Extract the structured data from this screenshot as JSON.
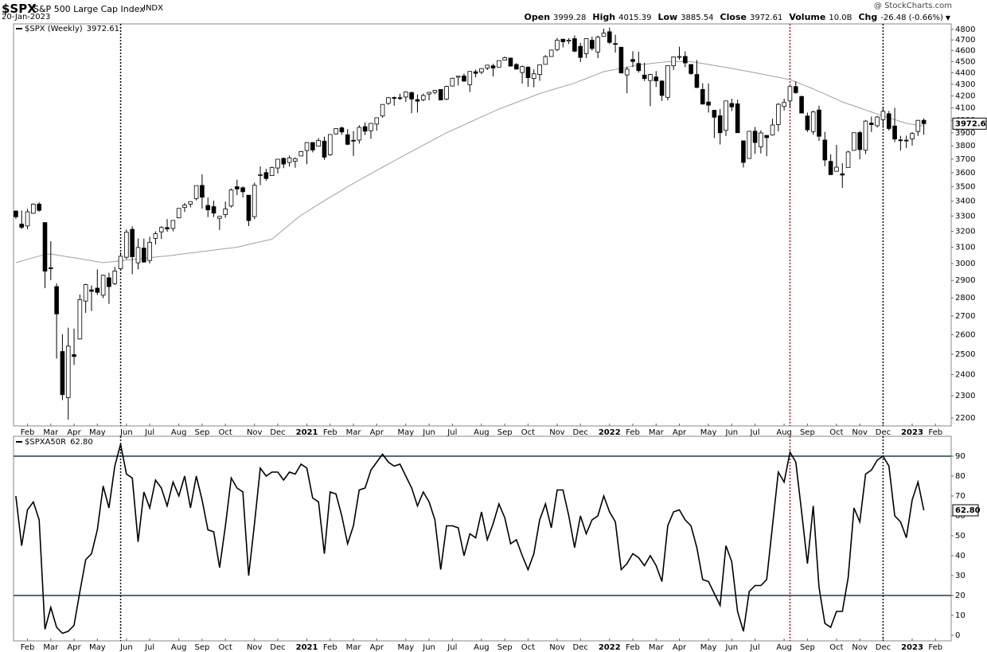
{
  "header": {
    "symbol": "$SPX",
    "name": "S&P 500 Large Cap Index",
    "exchange": "INDX",
    "date": "20-Jan-2023",
    "source": "@ StockCharts.com",
    "quote": [
      {
        "label": "Open",
        "value": "3999.28"
      },
      {
        "label": "High",
        "value": "4015.39"
      },
      {
        "label": "Low",
        "value": "3885.54"
      },
      {
        "label": "Close",
        "value": "3972.61"
      },
      {
        "label": "Volume",
        "value": "10.0B"
      },
      {
        "label": "Chg",
        "value": "-26.48 (-0.66%)"
      }
    ]
  },
  "chart_data": [
    {
      "type": "candlestick",
      "legend": "$SPX (Weekly)",
      "log_scale": true,
      "xlim": [
        -0.4,
        160.7
      ],
      "xticks": [
        {
          "value": 2,
          "label": "Feb"
        },
        {
          "value": 6,
          "label": "Mar"
        },
        {
          "value": 10,
          "label": "Apr"
        },
        {
          "value": 14,
          "label": "May"
        },
        {
          "value": 19,
          "label": "Jun"
        },
        {
          "value": 23,
          "label": "Jul"
        },
        {
          "value": 28,
          "label": "Aug"
        },
        {
          "value": 32,
          "label": "Sep"
        },
        {
          "value": 36,
          "label": "Oct"
        },
        {
          "value": 41,
          "label": "Nov"
        },
        {
          "value": 45,
          "label": "Dec"
        },
        {
          "value": 50,
          "label": "2021"
        },
        {
          "value": 54,
          "label": "Feb"
        },
        {
          "value": 58,
          "label": "Mar"
        },
        {
          "value": 62,
          "label": "Apr"
        },
        {
          "value": 67,
          "label": "May"
        },
        {
          "value": 71,
          "label": "Jun"
        },
        {
          "value": 75,
          "label": "Jul"
        },
        {
          "value": 80,
          "label": "Aug"
        },
        {
          "value": 84,
          "label": "Sep"
        },
        {
          "value": 88,
          "label": "Oct"
        },
        {
          "value": 93,
          "label": "Nov"
        },
        {
          "value": 97,
          "label": "Dec"
        },
        {
          "value": 102,
          "label": "2022"
        },
        {
          "value": 106,
          "label": "Feb"
        },
        {
          "value": 110,
          "label": "Mar"
        },
        {
          "value": 114,
          "label": "Apr"
        },
        {
          "value": 119,
          "label": "May"
        },
        {
          "value": 123,
          "label": "Jun"
        },
        {
          "value": 127,
          "label": "Jul"
        },
        {
          "value": 132,
          "label": "Aug"
        },
        {
          "value": 136,
          "label": "Sep"
        },
        {
          "value": 141,
          "label": "Oct"
        },
        {
          "value": 145,
          "label": "Nov"
        },
        {
          "value": 149,
          "label": "Dec"
        },
        {
          "value": 154,
          "label": "2023"
        },
        {
          "value": 158,
          "label": "Feb"
        }
      ],
      "ylim": [
        2165,
        4854
      ],
      "yticks": [
        2200,
        2300,
        2400,
        2500,
        2600,
        2700,
        2800,
        2900,
        3000,
        3100,
        3200,
        3300,
        3400,
        3500,
        3600,
        3700,
        3800,
        3900,
        4000,
        4100,
        4200,
        4300,
        4400,
        4500,
        4600,
        4700,
        4800
      ],
      "vlines": [
        {
          "value": 18,
          "color": "#000000"
        },
        {
          "value": 133,
          "color": "#d00000"
        },
        {
          "value": 149,
          "color": "#000000"
        }
      ],
      "up_color": "#ffffff",
      "down_color": "#000000",
      "open": [
        3333,
        3247,
        3235,
        3318,
        3380,
        3257,
        2974,
        2864,
        2514,
        2291,
        2498,
        2578,
        2782,
        2845,
        2855,
        2815,
        2915,
        2881,
        2969,
        3038,
        3213,
        3004,
        3094,
        3018,
        3155,
        3197,
        3224,
        3219,
        3288,
        3357,
        3380,
        3418,
        3509,
        3371,
        3363,
        3285,
        3310,
        3367,
        3500,
        3493,
        3441,
        3296,
        3584,
        3601,
        3579,
        3634,
        3705,
        3675,
        3684,
        3723,
        3764,
        3825,
        3797,
        3836,
        3732,
        3892,
        3939,
        3885,
        3842,
        3844,
        3949,
        3917,
        3969,
        4034,
        4138,
        4187,
        4185,
        4191,
        4228,
        4169,
        4168,
        4216,
        4230,
        4255,
        4174,
        4284,
        4361,
        4372,
        4296,
        4409,
        4406,
        4443,
        4462,
        4450,
        4513,
        4532,
        4474,
        4402,
        4450,
        4349,
        4385,
        4475,
        4546,
        4610,
        4707,
        4689,
        4712,
        4640,
        4572,
        4697,
        4588,
        4733,
        4778,
        4666,
        4632,
        4381,
        4519,
        4483,
        4380,
        4332,
        4363,
        4328,
        4188,
        4462,
        4541,
        4547,
        4474,
        4385,
        4255,
        4149,
        4081,
        4036,
        3919,
        4137,
        4134,
        3838,
        3704,
        3913,
        3792,
        3880,
        3883,
        3966,
        4112,
        4158,
        4280,
        4195,
        4034,
        3910,
        4083,
        3844,
        3683,
        3610,
        3592,
        3638,
        3765,
        3902,
        3766,
        3977,
        3956,
        4005,
        4053,
        3954,
        3845,
        3843,
        3853,
        3911,
        3999.28
      ],
      "high": [
        3338,
        3337,
        3348,
        3385,
        3393,
        3259,
        3137,
        2882,
        2603,
        2637,
        2632,
        2819,
        2880,
        2871,
        2965,
        2933,
        2945,
        2980,
        3068,
        3212,
        3233,
        3155,
        3154,
        3166,
        3200,
        3233,
        3280,
        3272,
        3352,
        3388,
        3399,
        3509,
        3588,
        3425,
        3403,
        3301,
        3397,
        3487,
        3550,
        3502,
        3441,
        3529,
        3646,
        3628,
        3644,
        3699,
        3712,
        3726,
        3712,
        3760,
        3826,
        3825,
        3860,
        3870,
        3887,
        3937,
        3950,
        3929,
        3914,
        3960,
        3983,
        3975,
        4020,
        4129,
        4191,
        4195,
        4219,
        4238,
        4238,
        4213,
        4220,
        4234,
        4249,
        4257,
        4287,
        4356,
        4372,
        4393,
        4415,
        4429,
        4442,
        4468,
        4480,
        4509,
        4545,
        4536,
        4486,
        4465,
        4457,
        4430,
        4475,
        4559,
        4608,
        4718,
        4708,
        4717,
        4744,
        4672,
        4713,
        4731,
        4740,
        4808,
        4819,
        4749,
        4632,
        4454,
        4595,
        4590,
        4490,
        4391,
        4415,
        4331,
        4465,
        4546,
        4637,
        4593,
        4474,
        4513,
        4308,
        4307,
        4081,
        4091,
        4158,
        4178,
        4169,
        3838,
        3914,
        3946,
        3919,
        3881,
        4013,
        4140,
        4177,
        4280,
        4325,
        4203,
        4062,
        4077,
        4119,
        3908,
        3736,
        3807,
        3670,
        3762,
        3902,
        3915,
        4002,
        4029,
        4034,
        4100,
        4076,
        4101,
        3877,
        3878,
        3906,
        4003,
        4015.39
      ],
      "low": [
        3281,
        3214,
        3214,
        3315,
        3328,
        2855,
        2902,
        2478,
        2280,
        2192,
        2447,
        2575,
        2717,
        2727,
        2816,
        2798,
        2766,
        2873,
        2969,
        3025,
        2936,
        2965,
        3004,
        3000,
        3116,
        3152,
        3198,
        3200,
        3284,
        3327,
        3358,
        3405,
        3349,
        3293,
        3293,
        3209,
        3288,
        3357,
        3441,
        3426,
        3234,
        3280,
        3511,
        3543,
        3577,
        3594,
        3633,
        3645,
        3636,
        3723,
        3662,
        3750,
        3795,
        3694,
        3725,
        3885,
        3885,
        3805,
        3723,
        3817,
        3883,
        3853,
        3917,
        4020,
        4125,
        4118,
        4165,
        4149,
        4057,
        4062,
        4156,
        4164,
        4214,
        4164,
        4165,
        4280,
        4289,
        4321,
        4233,
        4360,
        4387,
        4424,
        4368,
        4450,
        4513,
        4457,
        4428,
        4305,
        4278,
        4274,
        4330,
        4475,
        4546,
        4595,
        4630,
        4662,
        4585,
        4495,
        4532,
        4600,
        4531,
        4733,
        4662,
        4582,
        4396,
        4223,
        4450,
        4401,
        4328,
        4115,
        4276,
        4158,
        4162,
        4424,
        4517,
        4450,
        4381,
        4267,
        4128,
        4062,
        3859,
        3810,
        3875,
        4074,
        3900,
        3637,
        3702,
        3739,
        3742,
        3722,
        3879,
        3911,
        4080,
        4103,
        4219,
        4058,
        3907,
        3887,
        3838,
        3647,
        3584,
        3610,
        3492,
        3638,
        3764,
        3698,
        3738,
        3906,
        3942,
        3939,
        3918,
        3828,
        3764,
        3783,
        3802,
        3876,
        3885.54
      ],
      "close": [
        3295,
        3226,
        3328,
        3380,
        3338,
        2954,
        2972,
        2711,
        2305,
        2541,
        2489,
        2790,
        2875,
        2837,
        2831,
        2930,
        2864,
        2955,
        3044,
        3194,
        3041,
        3098,
        3009,
        3130,
        3185,
        3225,
        3216,
        3271,
        3351,
        3373,
        3397,
        3508,
        3427,
        3341,
        3319,
        3298,
        3348,
        3477,
        3484,
        3465,
        3270,
        3510,
        3585,
        3558,
        3638,
        3699,
        3663,
        3709,
        3703,
        3756,
        3825,
        3768,
        3841,
        3714,
        3887,
        3934,
        3907,
        3811,
        3842,
        3943,
        3913,
        3975,
        4020,
        4129,
        4185,
        4180,
        4181,
        4233,
        4174,
        4156,
        4204,
        4230,
        4247,
        4166,
        4281,
        4352,
        4370,
        4327,
        4412,
        4395,
        4437,
        4468,
        4442,
        4509,
        4535,
        4459,
        4433,
        4455,
        4357,
        4391,
        4471,
        4545,
        4605,
        4698,
        4683,
        4698,
        4595,
        4538,
        4712,
        4620,
        4726,
        4766,
        4677,
        4663,
        4398,
        4432,
        4501,
        4419,
        4349,
        4385,
        4329,
        4204,
        4463,
        4543,
        4546,
        4488,
        4393,
        4272,
        4132,
        4123,
        4024,
        3901,
        4158,
        4109,
        3901,
        3675,
        3912,
        3825,
        3899,
        3863,
        3962,
        4130,
        4145,
        4280,
        4228,
        4058,
        3924,
        4067,
        3873,
        3693,
        3586,
        3640,
        3583,
        3753,
        3901,
        3771,
        3993,
        3965,
        4026,
        4072,
        3934,
        3852,
        3845,
        3840,
        3895,
        3999,
        3972.61
      ],
      "ma": {
        "color": "#a0a0a0",
        "values": [
          3005,
          3015,
          3025,
          3035,
          3045,
          3055,
          3058,
          3052,
          3046,
          3040,
          3035,
          3029,
          3023,
          3017,
          3011,
          3005,
          3009,
          3012,
          3016,
          3020,
          3024,
          3028,
          3031,
          3035,
          3039,
          3043,
          3046,
          3050,
          3055,
          3059,
          3064,
          3068,
          3073,
          3077,
          3082,
          3086,
          3091,
          3095,
          3100,
          3108,
          3117,
          3125,
          3133,
          3142,
          3150,
          3181,
          3212,
          3243,
          3274,
          3305,
          3329,
          3354,
          3378,
          3403,
          3427,
          3451,
          3476,
          3500,
          3523,
          3547,
          3570,
          3593,
          3617,
          3640,
          3663,
          3687,
          3710,
          3734,
          3758,
          3781,
          3805,
          3829,
          3853,
          3876,
          3900,
          3921,
          3942,
          3963,
          3984,
          4006,
          4027,
          4048,
          4069,
          4090,
          4109,
          4127,
          4146,
          4164,
          4183,
          4201,
          4220,
          4235,
          4250,
          4265,
          4280,
          4295,
          4310,
          4330,
          4350,
          4370,
          4390,
          4410,
          4420,
          4430,
          4440,
          4450,
          4460,
          4470,
          4476,
          4482,
          4488,
          4494,
          4500,
          4500,
          4500,
          4500,
          4500,
          4491,
          4483,
          4474,
          4465,
          4456,
          4448,
          4439,
          4430,
          4420,
          4410,
          4400,
          4390,
          4380,
          4370,
          4360,
          4350,
          4340,
          4320,
          4300,
          4280,
          4260,
          4238,
          4216,
          4194,
          4172,
          4150,
          4133,
          4117,
          4100,
          4083,
          4067,
          4050,
          4035,
          4020,
          4005,
          3990,
          3975,
          3968,
          3961,
          3955
        ]
      }
    },
    {
      "type": "line",
      "legend": "$SPXA50R",
      "last_label": "62.80",
      "color": "#000000",
      "xlim": [
        -0.4,
        160.7
      ],
      "ylim": [
        -2.8,
        100
      ],
      "yticks": [
        0,
        10,
        20,
        30,
        40,
        50,
        60,
        70,
        80,
        90
      ],
      "hlines": [
        90,
        20
      ],
      "hline_color": "#1c3d5a",
      "vlines": [
        {
          "value": 18,
          "color": "#000000"
        },
        {
          "value": 133,
          "color": "#d00000"
        },
        {
          "value": 149,
          "color": "#000000"
        }
      ],
      "values": [
        70,
        45,
        63,
        67,
        58,
        3,
        14,
        4,
        1,
        2,
        5,
        22,
        38,
        41,
        53,
        75,
        64,
        85,
        96,
        81,
        79,
        47,
        72,
        64,
        78,
        74,
        65,
        77,
        70,
        80,
        64,
        80,
        68,
        53,
        52,
        34,
        55,
        79,
        74,
        72,
        30,
        56,
        84,
        80,
        82,
        82,
        78,
        82,
        81,
        86,
        84,
        69,
        67,
        41,
        72,
        71,
        60,
        46,
        55,
        73,
        74,
        83,
        87,
        91,
        87,
        85,
        86,
        80,
        74,
        65,
        72,
        67,
        58,
        33,
        55,
        55,
        54,
        40,
        51,
        49,
        62,
        48,
        56,
        66,
        59,
        46,
        48,
        40,
        33,
        41,
        58,
        66,
        54,
        73,
        73,
        60,
        44,
        60,
        51,
        58,
        60,
        70,
        62,
        57,
        33,
        36,
        41,
        39,
        35,
        40,
        35,
        27,
        55,
        62,
        63,
        58,
        55,
        44,
        28,
        27,
        21,
        15,
        45,
        37,
        12,
        2,
        22,
        25,
        25,
        28,
        55,
        82,
        77,
        92,
        87,
        62,
        36,
        65,
        24,
        6,
        4,
        12,
        12,
        29,
        64,
        57,
        81,
        83,
        88,
        90,
        85,
        60,
        57,
        49,
        68,
        77,
        62.8
      ]
    }
  ]
}
